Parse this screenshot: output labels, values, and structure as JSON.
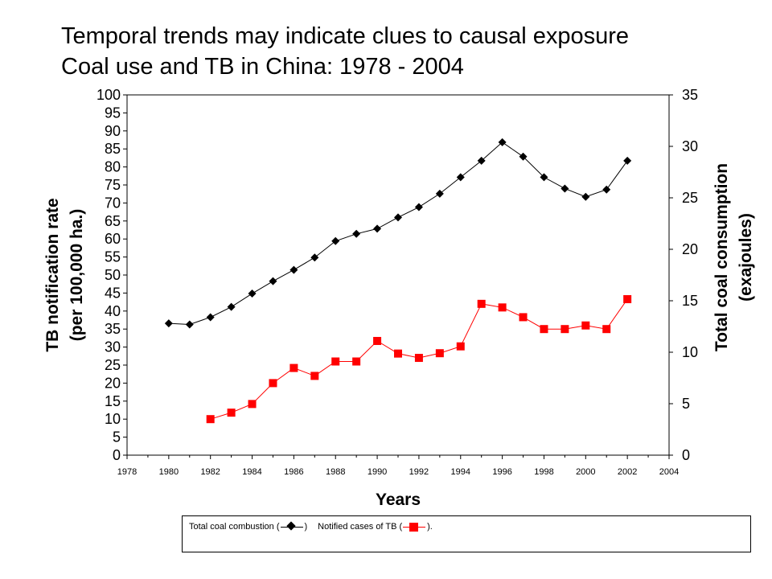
{
  "title_line1": "Temporal trends may indicate clues to causal exposure",
  "title_line2": "Coal use and TB in China: 1978 - 2004",
  "legend": {
    "coal_label": "Total coal combustion (",
    "coal_close": ")",
    "tb_label": "Notified cases of TB (",
    "tb_close": ")."
  },
  "chart_data": {
    "type": "line",
    "xlabel": "Years",
    "ylabel_left": [
      "TB notification rate",
      "(per 100,000 ha.)"
    ],
    "ylabel_right": [
      "Total coal consumption",
      "(exajoules)"
    ],
    "xlim": [
      1978,
      2004
    ],
    "xticks": [
      1978,
      1980,
      1982,
      1984,
      1986,
      1988,
      1990,
      1992,
      1994,
      1996,
      1998,
      2000,
      2002,
      2004
    ],
    "ylim_left": [
      0,
      100
    ],
    "yticks_left": [
      0,
      5,
      10,
      15,
      20,
      25,
      30,
      35,
      40,
      45,
      50,
      55,
      60,
      65,
      70,
      75,
      80,
      85,
      90,
      95,
      100
    ],
    "ylim_right": [
      0,
      35
    ],
    "yticks_right": [
      0,
      5,
      10,
      15,
      20,
      25,
      30,
      35
    ],
    "grid": false,
    "series": [
      {
        "name": "Total coal combustion",
        "axis": "right",
        "color": "#000000",
        "marker": "diamond",
        "x": [
          1980,
          1981,
          1982,
          1983,
          1984,
          1985,
          1986,
          1987,
          1988,
          1989,
          1990,
          1991,
          1992,
          1993,
          1994,
          1995,
          1996,
          1997,
          1998,
          1999,
          2000,
          2001,
          2002
        ],
        "y": [
          12.8,
          12.7,
          13.4,
          14.4,
          15.7,
          16.9,
          18.0,
          19.2,
          20.8,
          21.5,
          22.0,
          23.1,
          24.1,
          25.4,
          27.0,
          28.6,
          30.4,
          29.0,
          27.0,
          25.9,
          25.1,
          25.8,
          28.6
        ]
      },
      {
        "name": "Notified cases of TB",
        "axis": "left",
        "color": "#ff0000",
        "marker": "square",
        "x": [
          1982,
          1983,
          1984,
          1985,
          1986,
          1987,
          1988,
          1989,
          1990,
          1991,
          1992,
          1993,
          1994,
          1995,
          1996,
          1997,
          1998,
          1999,
          2000,
          2001,
          2002
        ],
        "y": [
          10.0,
          11.8,
          14.2,
          20.0,
          24.2,
          22.0,
          26.0,
          26.0,
          31.7,
          28.2,
          27.0,
          28.3,
          30.2,
          42.0,
          41.0,
          38.3,
          35.0,
          35.0,
          36.0,
          35.0,
          43.3
        ]
      }
    ]
  }
}
